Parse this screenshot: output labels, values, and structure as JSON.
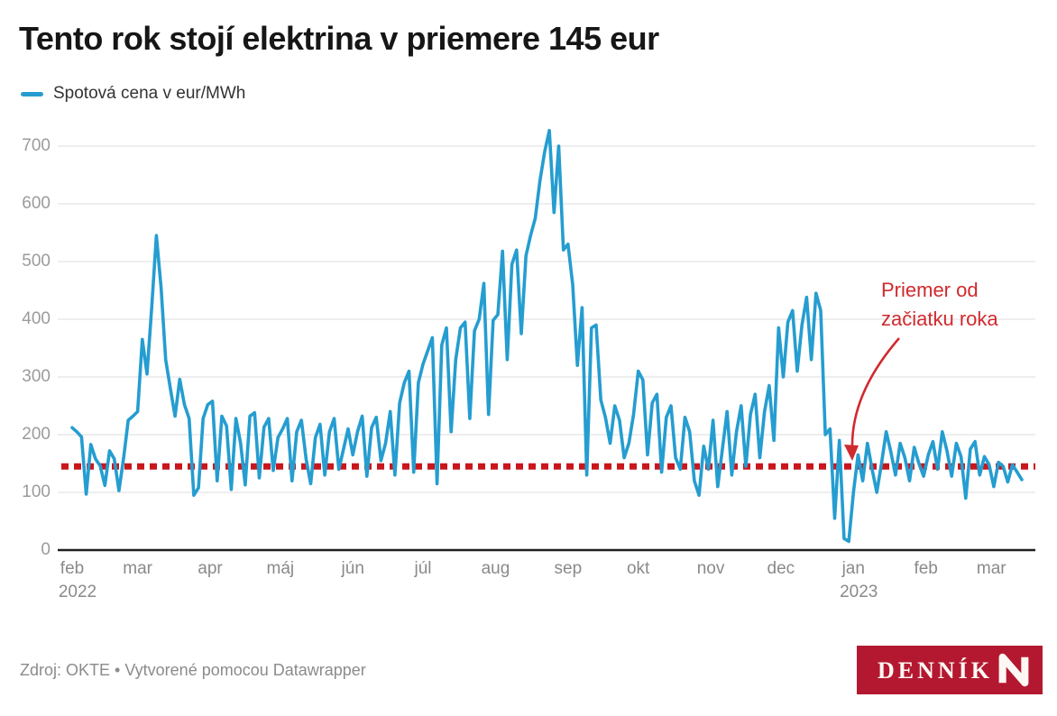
{
  "header": {
    "title": "Tento rok stojí elektrina v priemere 145 eur"
  },
  "legend": {
    "label": "Spotová cena v eur/MWh",
    "swatch_color": "#259dd0"
  },
  "annotation": {
    "line1": "Priemer od",
    "line2": "začiatku roka",
    "color": "#d02a2e"
  },
  "footer": {
    "source": "Zdroj: OKTE • Vytvorené pomocou Datawrapper",
    "brand": "DENNÍK",
    "brand_bg": "#b41830"
  },
  "chart_data": {
    "type": "line",
    "title": "Tento rok stojí elektrina v priemere 145 eur",
    "ylabel": "",
    "xlabel": "",
    "unit": "eur/MWh",
    "grid": "horizontal",
    "ylim": [
      0,
      730
    ],
    "yticks": [
      0,
      100,
      200,
      300,
      400,
      500,
      600,
      700
    ],
    "xticks_months": [
      {
        "label": "feb",
        "year": "2022",
        "day": 0
      },
      {
        "label": "mar",
        "day": 28
      },
      {
        "label": "apr",
        "day": 59
      },
      {
        "label": "máj",
        "day": 89
      },
      {
        "label": "jún",
        "day": 120
      },
      {
        "label": "júl",
        "day": 150
      },
      {
        "label": "aug",
        "day": 181
      },
      {
        "label": "sep",
        "day": 212
      },
      {
        "label": "okt",
        "day": 242
      },
      {
        "label": "nov",
        "day": 273
      },
      {
        "label": "dec",
        "day": 303
      },
      {
        "label": "jan",
        "year": "2023",
        "day": 334
      },
      {
        "label": "feb",
        "day": 365
      },
      {
        "label": "mar",
        "day": 393
      }
    ],
    "day_span": 406,
    "average_line": {
      "value": 145,
      "color": "#c9161d",
      "style": "dotted",
      "label": "Priemer od začiatku roka"
    },
    "series": [
      {
        "name": "Spotová cena v eur/MWh",
        "color": "#259dd0",
        "start_date": "2022-02-01",
        "end_date": "2023-03-14",
        "sampling": "approx. one value per 2 days, values in eur/MWh",
        "values": [
          212,
          205,
          196,
          97,
          183,
          158,
          146,
          112,
          172,
          158,
          103,
          160,
          225,
          232,
          240,
          365,
          305,
          420,
          545,
          455,
          330,
          280,
          232,
          296,
          252,
          228,
          95,
          108,
          228,
          252,
          258,
          120,
          232,
          215,
          105,
          228,
          186,
          113,
          232,
          238,
          125,
          213,
          228,
          138,
          195,
          210,
          228,
          120,
          205,
          225,
          158,
          115,
          195,
          218,
          130,
          205,
          228,
          140,
          175,
          210,
          165,
          205,
          232,
          128,
          212,
          230,
          155,
          185,
          240,
          130,
          255,
          290,
          310,
          135,
          290,
          322,
          345,
          368,
          115,
          355,
          385,
          205,
          330,
          385,
          395,
          228,
          380,
          400,
          462,
          235,
          398,
          408,
          518,
          330,
          495,
          520,
          375,
          510,
          545,
          575,
          640,
          690,
          727,
          585,
          700,
          520,
          530,
          460,
          320,
          420,
          130,
          385,
          390,
          260,
          230,
          185,
          250,
          225,
          160,
          185,
          235,
          310,
          295,
          165,
          255,
          270,
          135,
          230,
          250,
          160,
          140,
          230,
          205,
          120,
          95,
          180,
          140,
          225,
          110,
          175,
          240,
          130,
          205,
          250,
          145,
          235,
          270,
          160,
          240,
          285,
          190,
          385,
          300,
          395,
          415,
          310,
          390,
          438,
          330,
          445,
          415,
          200,
          210,
          55,
          190,
          20,
          15,
          100,
          165,
          120,
          185,
          140,
          100,
          150,
          205,
          170,
          130,
          185,
          160,
          120,
          178,
          150,
          128,
          165,
          188,
          140,
          205,
          172,
          128,
          185,
          162,
          90,
          175,
          188,
          130,
          162,
          148,
          110,
          152,
          145,
          118,
          148,
          135,
          122
        ]
      }
    ]
  }
}
